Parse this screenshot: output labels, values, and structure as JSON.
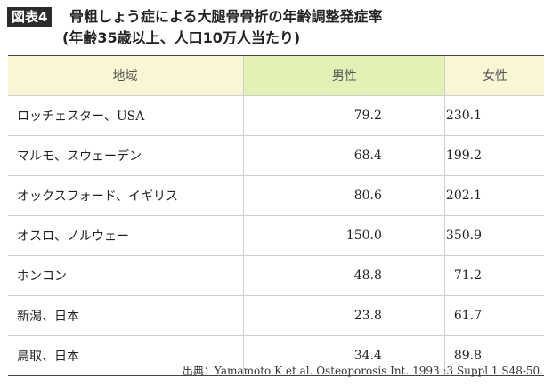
{
  "header": {
    "badge": "図表4",
    "title_line1": "骨粗しょう症による大腿骨骨折の年齢調整発症率",
    "title_line2": "(年齢35歳以上、人口10万人当たり)"
  },
  "table": {
    "columns": [
      "地域",
      "男性",
      "女性"
    ],
    "rows": [
      {
        "region": "ロッチェスター、USA",
        "male": "79.2",
        "female": "230.1"
      },
      {
        "region": "マルモ、スウェーデン",
        "male": "68.4",
        "female": "199.2"
      },
      {
        "region": "オックスフォード、イギリス",
        "male": "80.6",
        "female": "202.1"
      },
      {
        "region": "オスロ、ノルウェー",
        "male": "150.0",
        "female": "350.9"
      },
      {
        "region": "ホンコン",
        "male": "48.8",
        "female": "71.2"
      },
      {
        "region": "新潟、日本",
        "male": "23.8",
        "female": "61.7"
      },
      {
        "region": "鳥取、日本",
        "male": "34.4",
        "female": "89.8"
      }
    ]
  },
  "source": "出典：Yamamoto K et al. Osteoporosis Int. 1993 :3 Suppl 1 S48-50.",
  "colors": {
    "header_bg": "#faf5d2",
    "male_header_bg": "#e4f1b6",
    "badge_bg": "#2b2b2b"
  }
}
